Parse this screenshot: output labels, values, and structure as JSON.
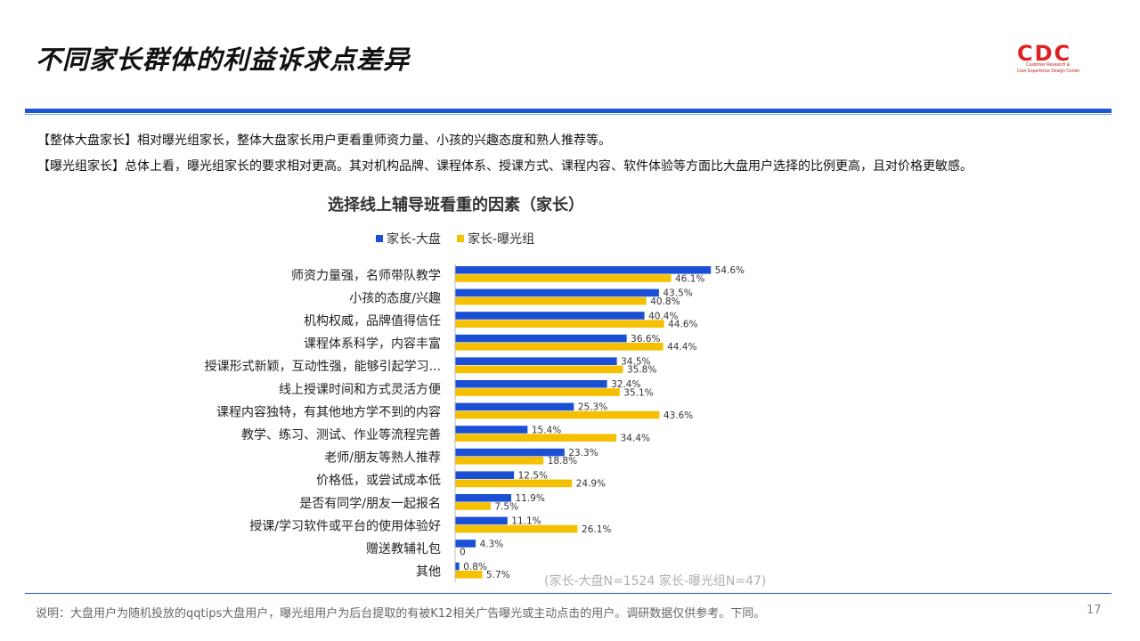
{
  "page": {
    "title": "不同家长群体的利益诉求点差异",
    "logo": {
      "mark": "CDC",
      "sub1": "Customer Research &",
      "sub2": "User Experience Design Center"
    },
    "intro": [
      "【整体大盘家长】相对曝光组家长，整体大盘家长用户更看重师资力量、小孩的兴趣态度和熟人推荐等。",
      "【曝光组家长】总体上看，曝光组家长的要求相对更高。其对机构品牌、课程体系、授课方式、课程内容、软件体验等方面比大盘用户选择的比例更高，且对价格更敏感。"
    ],
    "sample_note": "(家长-大盘N=1524       家长-曝光组N=47)",
    "footnote": "说明：大盘用户为随机投放的qqtips大盘用户，曝光组用户为后台提取的有被K12相关广告曝光或主动点击的用户。调研数据仅供参考。下同。",
    "page_number": "17"
  },
  "chart_data": {
    "type": "bar",
    "orientation": "horizontal",
    "title": "选择线上辅导班看重的因素（家长）",
    "categories": [
      "师资力量强，名师带队教学",
      "小孩的态度/兴趣",
      "机构权威，品牌值得信任",
      "课程体系科学，内容丰富",
      "授课形式新颖，互动性强，能够引起学习...",
      "线上授课时间和方式灵活方便",
      "课程内容独特，有其他地方学不到的内容",
      "教学、练习、测试、作业等流程完善",
      "老师/朋友等熟人推荐",
      "价格低，或尝试成本低",
      "是否有同学/朋友一起报名",
      "授课/学习软件或平台的使用体验好",
      "赠送教辅礼包",
      "其他"
    ],
    "series": [
      {
        "name": "家长-大盘",
        "color": "#1a4fd6",
        "values": [
          54.6,
          43.5,
          40.4,
          36.6,
          34.5,
          32.4,
          25.3,
          15.4,
          23.3,
          12.5,
          11.9,
          11.1,
          4.3,
          0.8
        ],
        "labels": [
          "54.6%",
          "43.5%",
          "40.4%",
          "36.6%",
          "34.5%",
          "32.4%",
          "25.3%",
          "15.4%",
          "23.3%",
          "12.5%",
          "11.9%",
          "11.1%",
          "4.3%",
          "0.8%"
        ]
      },
      {
        "name": "家长-曝光组",
        "color": "#f5c000",
        "values": [
          46.1,
          40.8,
          44.6,
          44.4,
          35.8,
          35.1,
          43.6,
          34.4,
          18.8,
          24.9,
          7.5,
          26.1,
          0,
          5.7
        ],
        "labels": [
          "46.1%",
          "40.8%",
          "44.6%",
          "44.4%",
          "35.8%",
          "35.1%",
          "43.6%",
          "34.4%",
          "18.8%",
          "24.9%",
          "7.5%",
          "26.1%",
          "0",
          "5.7%"
        ]
      }
    ],
    "legend_position": "top",
    "grid": false
  }
}
